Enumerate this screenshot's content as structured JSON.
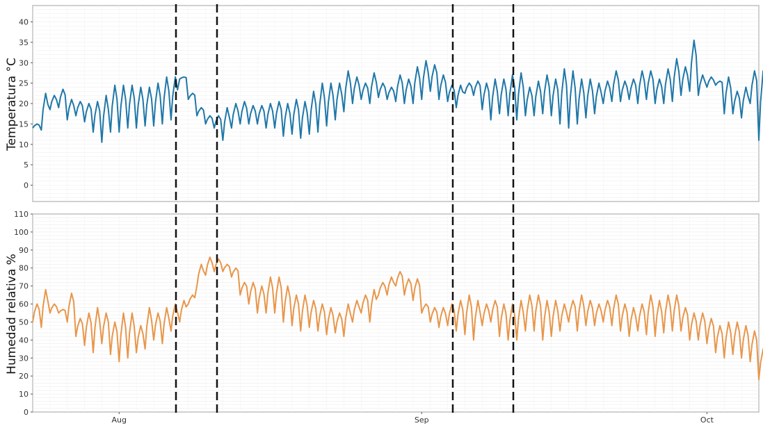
{
  "chart_data": [
    {
      "type": "line",
      "ylabel": "Temperatura °C",
      "ylim": [
        -4,
        44
      ],
      "yticks": [
        0,
        5,
        10,
        15,
        20,
        25,
        30,
        35,
        40
      ],
      "grid": true,
      "series": [
        {
          "color": "#1f77a8",
          "x": [
            0,
            1,
            2,
            3,
            4,
            5,
            6,
            7,
            8,
            9,
            10,
            11,
            12,
            13,
            14,
            15,
            16,
            17,
            18,
            19,
            20,
            21,
            22,
            23,
            24,
            25,
            26,
            27,
            28,
            29,
            30,
            31,
            32,
            33,
            34,
            35,
            36,
            37,
            38,
            39,
            40,
            41,
            42,
            43,
            44,
            45,
            46,
            47,
            48,
            49,
            50,
            51,
            52,
            53,
            54,
            55,
            56,
            57,
            58,
            59,
            60,
            61,
            62,
            63,
            64,
            65,
            66,
            67,
            68,
            69,
            70,
            71,
            72,
            73,
            74,
            75,
            76,
            77,
            78,
            79,
            80,
            81,
            82,
            83,
            84
          ],
          "min": [
            14,
            13.5,
            18.5,
            19,
            16,
            17,
            15.5,
            13,
            10.5,
            13,
            13,
            14,
            14,
            14.5,
            14.5,
            15,
            16,
            26,
            21,
            17,
            15,
            14,
            11,
            14,
            15,
            15,
            15,
            14,
            14,
            12,
            12.5,
            11.5,
            12.5,
            13,
            14.5,
            16,
            18,
            20,
            21,
            20,
            21.5,
            21,
            20.5,
            20,
            20,
            21,
            23,
            21,
            20.5,
            19,
            22.5,
            22,
            18.5,
            16,
            17.5,
            17,
            16,
            17,
            17,
            17.5,
            17,
            15,
            14,
            15,
            16.5,
            17.5,
            20,
            20.5,
            20.5,
            21,
            20,
            21,
            20,
            20,
            20.5,
            22,
            23,
            22,
            24,
            24.5,
            17.5,
            17.5,
            16.5,
            20,
            11
          ],
          "max": [
            15,
            22.5,
            22,
            23.5,
            21,
            20.5,
            20,
            20.5,
            22,
            24.5,
            24.5,
            24.5,
            24,
            24,
            25,
            26.5,
            26.5,
            26.5,
            22.5,
            19,
            17,
            17,
            19,
            20,
            20.5,
            19.5,
            19.5,
            20,
            20.5,
            20,
            21,
            20.5,
            23,
            25,
            25,
            25,
            28,
            26.5,
            25,
            27.5,
            25,
            24,
            27,
            26,
            29,
            30.5,
            29.5,
            27,
            24.5,
            24.5,
            25,
            25.5,
            25,
            26,
            26,
            27,
            27.5,
            24,
            25.5,
            27,
            26,
            28.5,
            28,
            26,
            26,
            25,
            25.5,
            28,
            25.5,
            26,
            28,
            28,
            26,
            28.5,
            31,
            29,
            35.5,
            27,
            26.5,
            25.5,
            26.5,
            23,
            24,
            28,
            28
          ]
        }
      ]
    },
    {
      "type": "line",
      "ylabel": "Humedad relativa %",
      "ylim": [
        0,
        110
      ],
      "yticks": [
        0,
        10,
        20,
        30,
        40,
        50,
        60,
        70,
        80,
        90,
        100,
        110
      ],
      "grid": true,
      "xticks": [
        {
          "x": 10,
          "label": "Aug"
        },
        {
          "x": 45,
          "label": "Sep"
        },
        {
          "x": 78,
          "label": "Oct"
        }
      ],
      "series": [
        {
          "color": "#e8964a",
          "x": [
            0,
            1,
            2,
            3,
            4,
            5,
            6,
            7,
            8,
            9,
            10,
            11,
            12,
            13,
            14,
            15,
            16,
            17,
            18,
            19,
            20,
            21,
            22,
            23,
            24,
            25,
            26,
            27,
            28,
            29,
            30,
            31,
            32,
            33,
            34,
            35,
            36,
            37,
            38,
            39,
            40,
            41,
            42,
            43,
            44,
            45,
            46,
            47,
            48,
            49,
            50,
            51,
            52,
            53,
            54,
            55,
            56,
            57,
            58,
            59,
            60,
            61,
            62,
            63,
            64,
            65,
            66,
            67,
            68,
            69,
            70,
            71,
            72,
            73,
            74,
            75,
            76,
            77,
            78,
            79,
            80,
            81,
            82,
            83,
            84
          ],
          "min": [
            50,
            47,
            55,
            55,
            50,
            42,
            37,
            33,
            38,
            32,
            28,
            30,
            33,
            35,
            40,
            38,
            45,
            50,
            60,
            70,
            76,
            78,
            78,
            75,
            65,
            60,
            55,
            55,
            55,
            50,
            48,
            45,
            47,
            45,
            43,
            44,
            42,
            50,
            55,
            50,
            65,
            65,
            70,
            65,
            62,
            55,
            50,
            47,
            48,
            45,
            43,
            40,
            48,
            50,
            42,
            40,
            40,
            45,
            45,
            40,
            42,
            45,
            50,
            45,
            48,
            48,
            50,
            48,
            45,
            42,
            45,
            43,
            42,
            44,
            45,
            45,
            40,
            40,
            38,
            33,
            30,
            32,
            30,
            28,
            18
          ]
        },
        {
          "color": "#e8964a",
          "x": [
            0,
            1,
            2,
            3,
            4,
            5,
            6,
            7,
            8,
            9,
            10,
            11,
            12,
            13,
            14,
            15,
            16,
            17,
            18,
            19,
            20,
            21,
            22,
            23,
            24,
            25,
            26,
            27,
            28,
            29,
            30,
            31,
            32,
            33,
            34,
            35,
            36,
            37,
            38,
            39,
            40,
            41,
            42,
            43,
            44,
            45,
            46,
            47,
            48,
            49,
            50,
            51,
            52,
            53,
            54,
            55,
            56,
            57,
            58,
            59,
            60,
            61,
            62,
            63,
            64,
            65,
            66,
            67,
            68,
            69,
            70,
            71,
            72,
            73,
            74,
            75,
            76,
            77,
            78,
            79,
            80,
            81,
            82,
            83,
            84
          ],
          "max": [
            60,
            68,
            60,
            57,
            66,
            52,
            55,
            58,
            55,
            50,
            55,
            55,
            48,
            58,
            55,
            58,
            60,
            62,
            65,
            82,
            86,
            85,
            82,
            80,
            72,
            72,
            70,
            75,
            75,
            70,
            65,
            65,
            62,
            60,
            58,
            55,
            60,
            62,
            65,
            68,
            72,
            75,
            78,
            74,
            74,
            60,
            58,
            58,
            60,
            62,
            65,
            62,
            60,
            62,
            60,
            60,
            62,
            65,
            65,
            62,
            62,
            60,
            62,
            65,
            62,
            60,
            62,
            65,
            60,
            58,
            60,
            65,
            62,
            65,
            65,
            58,
            55,
            55,
            52,
            48,
            50,
            50,
            48,
            45,
            35
          ]
        }
      ]
    }
  ]
}
